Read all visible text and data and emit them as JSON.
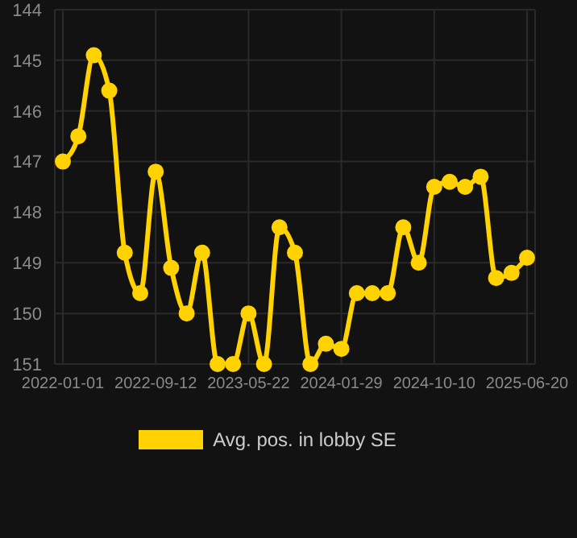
{
  "chart_data": {
    "type": "line",
    "categories": [
      "2022-01-01",
      null,
      null,
      null,
      null,
      null,
      "2022-09-12",
      null,
      null,
      null,
      null,
      null,
      "2023-05-22",
      null,
      null,
      null,
      null,
      null,
      "2024-01-29",
      null,
      null,
      null,
      null,
      null,
      "2024-10-10",
      null,
      null,
      null,
      null,
      null,
      "2025-06-20"
    ],
    "series": [
      {
        "name": "Avg. pos. in lobby SE",
        "color": "#ffd200",
        "values": [
          147,
          146.5,
          144.9,
          145.6,
          148.8,
          149.6,
          147.2,
          149.1,
          150,
          148.8,
          151,
          151,
          150,
          151,
          148.3,
          148.8,
          151,
          150.6,
          150.7,
          149.6,
          149.6,
          149.6,
          148.3,
          149,
          147.5,
          147.4,
          147.5,
          147.3,
          149.3,
          149.2,
          148.9
        ]
      }
    ],
    "ylim": [
      151,
      144
    ],
    "yticks": [
      144,
      145,
      146,
      147,
      148,
      149,
      150,
      151
    ],
    "grid": true,
    "legend": "bottom",
    "marker": "circle",
    "line_style": "solid"
  }
}
